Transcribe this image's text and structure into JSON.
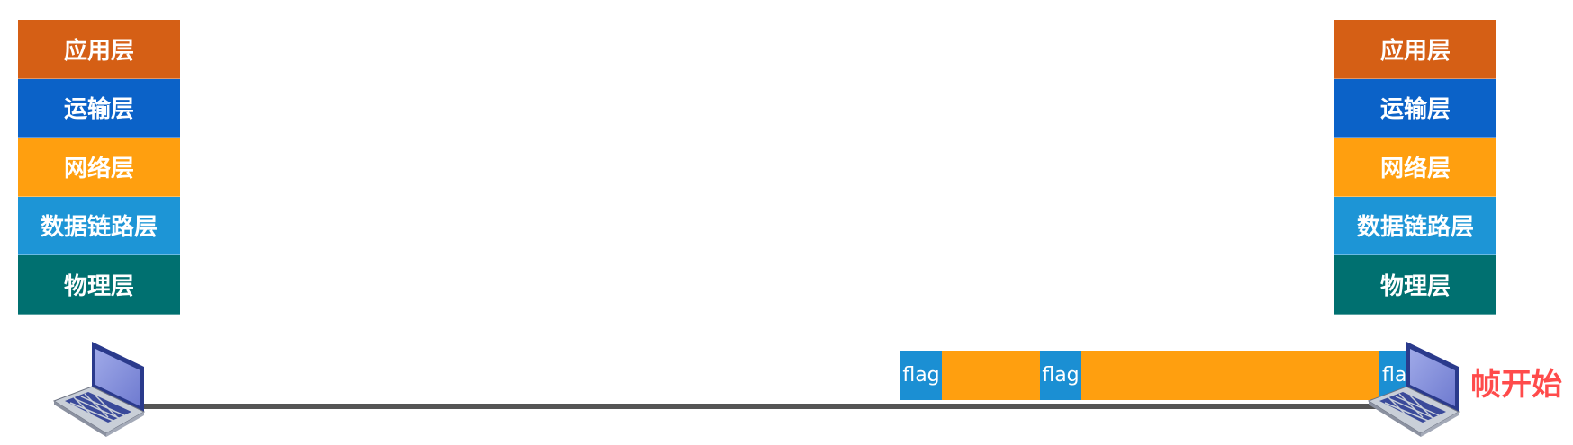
{
  "layers": {
    "application": "应用层",
    "transport": "运输层",
    "network": "网络层",
    "datalink": "数据链路层",
    "physical": "物理层"
  },
  "colors": {
    "application": "#d55f15",
    "transport": "#0b62c8",
    "network": "#ff9f0f",
    "datalink": "#1d95d6",
    "physical": "#007070",
    "flag": "#1b8fd3",
    "payload": "#ff9f0f",
    "link": "#555555",
    "frame_start": "#ff4b4b"
  },
  "frame": {
    "flag_label": "flag"
  },
  "annotation": {
    "frame_start": "帧开始"
  }
}
